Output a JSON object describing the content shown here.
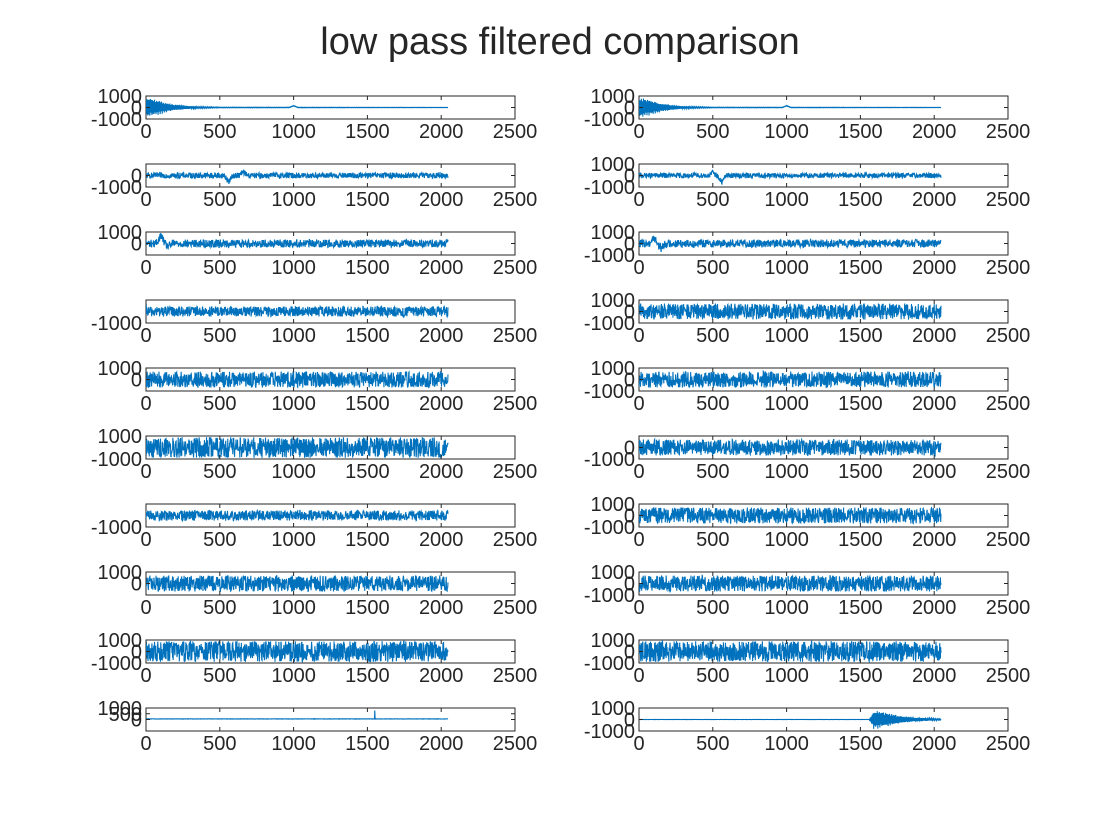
{
  "figure": {
    "title": "low pass filtered comparison",
    "line_color": "#0072BD",
    "axis_color": "#262626",
    "background": "#ffffff"
  },
  "chart_data": [
    {
      "type": "line",
      "panel": "1-left",
      "xlim": [
        0,
        2500
      ],
      "xticks": [
        0,
        500,
        1000,
        1500,
        2000,
        2500
      ],
      "yticks": [
        -1000,
        0,
        1000
      ],
      "n_samples": 2048,
      "signal": "decaying oscillation",
      "envelope": [
        {
          "x": 0,
          "y": 950
        },
        {
          "x": 60,
          "y": 750
        },
        {
          "x": 150,
          "y": 380
        },
        {
          "x": 250,
          "y": 180
        },
        {
          "x": 350,
          "y": 80
        },
        {
          "x": 500,
          "y": 30
        },
        {
          "x": 2048,
          "y": 15
        }
      ],
      "events": [
        {
          "x": 1000,
          "y": 150
        }
      ]
    },
    {
      "type": "line",
      "panel": "1-right",
      "xlim": [
        0,
        2500
      ],
      "xticks": [
        0,
        500,
        1000,
        1500,
        2000,
        2500
      ],
      "yticks": [
        -1000,
        0,
        1000
      ],
      "n_samples": 2048,
      "signal": "decaying oscillation",
      "envelope": [
        {
          "x": 0,
          "y": 950
        },
        {
          "x": 60,
          "y": 750
        },
        {
          "x": 150,
          "y": 380
        },
        {
          "x": 250,
          "y": 180
        },
        {
          "x": 350,
          "y": 80
        },
        {
          "x": 500,
          "y": 30
        },
        {
          "x": 2048,
          "y": 15
        }
      ],
      "events": [
        {
          "x": 1000,
          "y": 150
        }
      ]
    },
    {
      "type": "line",
      "panel": "2-left",
      "xlim": [
        0,
        2500
      ],
      "xticks": [
        0,
        500,
        1000,
        1500,
        2000,
        2500
      ],
      "yticks": [
        -1000,
        0
      ],
      "n_samples": 2048,
      "signal": "dense noise",
      "noise_amplitude": 250,
      "offset": 0,
      "events": [
        {
          "x": 560,
          "y": -550
        },
        {
          "x": 660,
          "y": 300
        }
      ]
    },
    {
      "type": "line",
      "panel": "2-right",
      "xlim": [
        0,
        2500
      ],
      "xticks": [
        0,
        500,
        1000,
        1500,
        2000,
        2500
      ],
      "yticks": [
        -1000,
        0,
        1000
      ],
      "n_samples": 2048,
      "signal": "dense noise",
      "noise_amplitude": 220,
      "offset": 0,
      "events": [
        {
          "x": 560,
          "y": -600
        },
        {
          "x": 500,
          "y": 250
        }
      ]
    },
    {
      "type": "line",
      "panel": "3-left",
      "xlim": [
        0,
        2500
      ],
      "xticks": [
        0,
        500,
        1000,
        1500,
        2000,
        2500
      ],
      "yticks": [
        0,
        1000
      ],
      "n_samples": 2048,
      "signal": "dense noise",
      "noise_amplitude": 350,
      "offset": 0,
      "events": [
        {
          "x": 100,
          "y": 700
        },
        {
          "x": 150,
          "y": -250
        }
      ]
    },
    {
      "type": "line",
      "panel": "3-right",
      "xlim": [
        0,
        2500
      ],
      "xticks": [
        0,
        500,
        1000,
        1500,
        2000,
        2500
      ],
      "yticks": [
        -1000,
        0,
        1000
      ],
      "n_samples": 2048,
      "signal": "dense noise",
      "noise_amplitude": 350,
      "offset": 0,
      "events": [
        {
          "x": 100,
          "y": 500
        },
        {
          "x": 150,
          "y": -400
        }
      ]
    },
    {
      "type": "line",
      "panel": "4-left",
      "xlim": [
        0,
        2500
      ],
      "xticks": [
        0,
        500,
        1000,
        1500,
        2000,
        2500
      ],
      "yticks": [
        -1000
      ],
      "n_samples": 2048,
      "signal": "dense noise",
      "noise_amplitude": 450,
      "offset": 0
    },
    {
      "type": "line",
      "panel": "4-right",
      "xlim": [
        0,
        2500
      ],
      "xticks": [
        0,
        500,
        1000,
        1500,
        2000,
        2500
      ],
      "yticks": [
        -1000,
        0,
        1000
      ],
      "n_samples": 2048,
      "signal": "dense noise",
      "noise_amplitude": 700,
      "offset": 0
    },
    {
      "type": "line",
      "panel": "5-left",
      "xlim": [
        0,
        2500
      ],
      "xticks": [
        0,
        500,
        1000,
        1500,
        2000,
        2500
      ],
      "yticks": [
        0,
        1000
      ],
      "n_samples": 2048,
      "signal": "dense noise",
      "noise_amplitude": 700,
      "offset": 0
    },
    {
      "type": "line",
      "panel": "5-right",
      "xlim": [
        0,
        2500
      ],
      "xticks": [
        0,
        500,
        1000,
        1500,
        2000,
        2500
      ],
      "yticks": [
        -1000,
        0,
        1000
      ],
      "n_samples": 2048,
      "signal": "dense noise",
      "noise_amplitude": 700,
      "offset": 0
    },
    {
      "type": "line",
      "panel": "6-left",
      "xlim": [
        0,
        2500
      ],
      "xticks": [
        0,
        500,
        1000,
        1500,
        2000,
        2500
      ],
      "yticks": [
        -1000,
        1000
      ],
      "n_samples": 2048,
      "signal": "dense noise",
      "noise_amplitude": 900,
      "offset": 0
    },
    {
      "type": "line",
      "panel": "6-right",
      "xlim": [
        0,
        2500
      ],
      "xticks": [
        0,
        500,
        1000,
        1500,
        2000,
        2500
      ],
      "yticks": [
        -1000,
        0
      ],
      "n_samples": 2048,
      "signal": "dense noise",
      "noise_amplitude": 700,
      "offset": 0
    },
    {
      "type": "line",
      "panel": "7-left",
      "xlim": [
        0,
        2500
      ],
      "xticks": [
        0,
        500,
        1000,
        1500,
        2000,
        2500
      ],
      "yticks": [
        -1000
      ],
      "n_samples": 2048,
      "signal": "dense noise",
      "noise_amplitude": 450,
      "offset": 0
    },
    {
      "type": "line",
      "panel": "7-right",
      "xlim": [
        0,
        2500
      ],
      "xticks": [
        0,
        500,
        1000,
        1500,
        2000,
        2500
      ],
      "yticks": [
        -1000,
        0,
        1000
      ],
      "n_samples": 2048,
      "signal": "dense noise",
      "noise_amplitude": 700,
      "offset": 0
    },
    {
      "type": "line",
      "panel": "8-left",
      "xlim": [
        0,
        2500
      ],
      "xticks": [
        0,
        500,
        1000,
        1500,
        2000,
        2500
      ],
      "yticks": [
        0,
        1000
      ],
      "n_samples": 2048,
      "signal": "dense noise",
      "noise_amplitude": 700,
      "offset": 0
    },
    {
      "type": "line",
      "panel": "8-right",
      "xlim": [
        0,
        2500
      ],
      "xticks": [
        0,
        500,
        1000,
        1500,
        2000,
        2500
      ],
      "yticks": [
        -1000,
        0,
        1000
      ],
      "n_samples": 2048,
      "signal": "dense noise",
      "noise_amplitude": 700,
      "offset": 0
    },
    {
      "type": "line",
      "panel": "9-left",
      "xlim": [
        0,
        2500
      ],
      "xticks": [
        0,
        500,
        1000,
        1500,
        2000,
        2500
      ],
      "yticks": [
        -1000,
        0,
        1000
      ],
      "n_samples": 2048,
      "signal": "dense noise",
      "noise_amplitude": 900,
      "offset": 0
    },
    {
      "type": "line",
      "panel": "9-right",
      "xlim": [
        0,
        2500
      ],
      "xticks": [
        0,
        500,
        1000,
        1500,
        2000,
        2500
      ],
      "yticks": [
        -1000,
        0,
        1000
      ],
      "n_samples": 2048,
      "signal": "dense noise",
      "noise_amplitude": 900,
      "offset": 0
    },
    {
      "type": "line",
      "panel": "10-left",
      "xlim": [
        0,
        2500
      ],
      "xticks": [
        0,
        500,
        1000,
        1500,
        2000,
        2500
      ],
      "yticks": [
        0,
        500,
        1000
      ],
      "n_samples": 2048,
      "signal": "near-zero baseline",
      "noise_amplitude": 15,
      "offset": 50,
      "events": [
        {
          "x": 1550,
          "y": 720
        }
      ]
    },
    {
      "type": "line",
      "panel": "10-right",
      "xlim": [
        0,
        2500
      ],
      "xticks": [
        0,
        500,
        1000,
        1500,
        2000,
        2500
      ],
      "yticks": [
        -1000,
        0,
        1000
      ],
      "n_samples": 2048,
      "signal": "late decaying burst",
      "noise_amplitude": 5,
      "offset": 0,
      "burst": {
        "start": 1560,
        "peak": 900,
        "envelope": [
          {
            "x": 1560,
            "y": 0
          },
          {
            "x": 1590,
            "y": 900
          },
          {
            "x": 1650,
            "y": 700
          },
          {
            "x": 1750,
            "y": 400
          },
          {
            "x": 1850,
            "y": 200
          },
          {
            "x": 2048,
            "y": 50
          }
        ]
      }
    }
  ]
}
